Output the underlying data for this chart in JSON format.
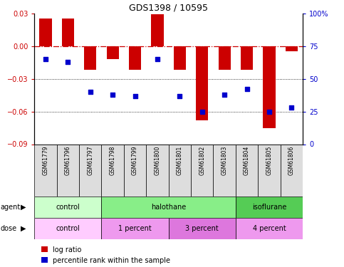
{
  "title": "GDS1398 / 10595",
  "samples": [
    "GSM61779",
    "GSM61796",
    "GSM61797",
    "GSM61798",
    "GSM61799",
    "GSM61800",
    "GSM61801",
    "GSM61802",
    "GSM61803",
    "GSM61804",
    "GSM61805",
    "GSM61806"
  ],
  "log_ratio": [
    0.025,
    0.025,
    -0.022,
    -0.012,
    -0.022,
    0.029,
    -0.022,
    -0.068,
    -0.022,
    -0.022,
    -0.075,
    -0.005
  ],
  "percentile_rank": [
    65,
    63,
    40,
    38,
    37,
    65,
    37,
    25,
    38,
    42,
    25,
    28
  ],
  "ylim_left": [
    -0.09,
    0.03
  ],
  "ylim_right": [
    0,
    100
  ],
  "yticks_left": [
    -0.09,
    -0.06,
    -0.03,
    0,
    0.03
  ],
  "yticks_right": [
    0,
    25,
    50,
    75,
    100
  ],
  "bar_color": "#cc0000",
  "dot_color": "#0000cc",
  "zero_line_color": "#cc0000",
  "grid_color": "#000000",
  "sample_bg": "#dddddd",
  "agent_groups": [
    {
      "label": "control",
      "start": 0,
      "end": 3,
      "color": "#ccffcc"
    },
    {
      "label": "halothane",
      "start": 3,
      "end": 9,
      "color": "#88ee88"
    },
    {
      "label": "isoflurane",
      "start": 9,
      "end": 12,
      "color": "#55cc55"
    }
  ],
  "dose_groups": [
    {
      "label": "control",
      "start": 0,
      "end": 3,
      "color": "#ffccff"
    },
    {
      "label": "1 percent",
      "start": 3,
      "end": 6,
      "color": "#ee99ee"
    },
    {
      "label": "3 percent",
      "start": 6,
      "end": 9,
      "color": "#dd77dd"
    },
    {
      "label": "4 percent",
      "start": 9,
      "end": 12,
      "color": "#ee99ee"
    }
  ],
  "legend_items": [
    {
      "label": "log ratio",
      "color": "#cc0000"
    },
    {
      "label": "percentile rank within the sample",
      "color": "#0000cc"
    }
  ]
}
